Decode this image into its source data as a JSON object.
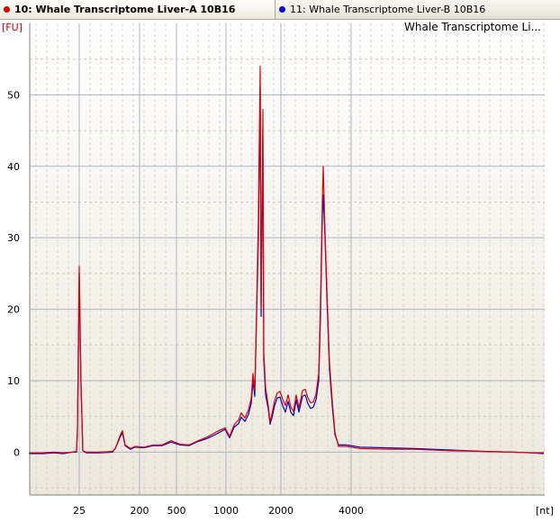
{
  "tabs": [
    {
      "label": "10: Whale Transcriptome Liver-A 10B16",
      "color": "#dd0000",
      "active": true
    },
    {
      "label": "11: Whale Transcriptome Liver-B 10B16",
      "color": "#0000dd",
      "active": false
    }
  ],
  "chart_data": {
    "type": "line",
    "title": "Whale Transcriptome Li...",
    "xlabel": "[nt]",
    "ylabel": "[FU]",
    "ylim": [
      -6,
      60
    ],
    "y_ticks": [
      0,
      10,
      20,
      30,
      40,
      50
    ],
    "x_ticks": [
      {
        "label": "25",
        "value": 25
      },
      {
        "label": "200",
        "value": 200
      },
      {
        "label": "500",
        "value": 500
      },
      {
        "label": "1000",
        "value": 1000
      },
      {
        "label": "2000",
        "value": 2000
      },
      {
        "label": "4000",
        "value": 4000
      }
    ],
    "grid": true,
    "x_scale": "nonlinear (electropherogram size ladder)",
    "series": [
      {
        "name": "10: Whale Transcriptome Liver-A 10B16",
        "color": "#e00000",
        "points": [
          [
            32,
            -0.1
          ],
          [
            48,
            -0.1
          ],
          [
            60,
            0
          ],
          [
            70,
            -0.1
          ],
          [
            80,
            0
          ],
          [
            85,
            0.1
          ],
          [
            86,
            3
          ],
          [
            88,
            26
          ],
          [
            90,
            10
          ],
          [
            92,
            0.2
          ],
          [
            96,
            0
          ],
          [
            110,
            0
          ],
          [
            125,
            0.1
          ],
          [
            128,
            0.5
          ],
          [
            133,
            2.2
          ],
          [
            136,
            3
          ],
          [
            139,
            1
          ],
          [
            145,
            0.5
          ],
          [
            150,
            0.8
          ],
          [
            160,
            0.7
          ],
          [
            170,
            1
          ],
          [
            180,
            1
          ],
          [
            190,
            1.6
          ],
          [
            200,
            1.1
          ],
          [
            210,
            1
          ],
          [
            220,
            1.6
          ],
          [
            230,
            2.1
          ],
          [
            240,
            2.8
          ],
          [
            250,
            3.4
          ],
          [
            255,
            2.2
          ],
          [
            260,
            3.8
          ],
          [
            265,
            4.5
          ],
          [
            268,
            5.5
          ],
          [
            272,
            4.8
          ],
          [
            276,
            5.9
          ],
          [
            279,
            7.5
          ],
          [
            281,
            11
          ],
          [
            283,
            8.5
          ],
          [
            285,
            20
          ],
          [
            287,
            33
          ],
          [
            289,
            54
          ],
          [
            290,
            20
          ],
          [
            292,
            48
          ],
          [
            293,
            14
          ],
          [
            295,
            9
          ],
          [
            298,
            6.5
          ],
          [
            300,
            4.2
          ],
          [
            302,
            5.3
          ],
          [
            305,
            7.2
          ],
          [
            308,
            8.3
          ],
          [
            311,
            8.5
          ],
          [
            314,
            7.4
          ],
          [
            317,
            6.5
          ],
          [
            320,
            8
          ],
          [
            323,
            6.3
          ],
          [
            326,
            5.7
          ],
          [
            329,
            8
          ],
          [
            332,
            6.2
          ],
          [
            336,
            8.6
          ],
          [
            339,
            8.8
          ],
          [
            342,
            7.6
          ],
          [
            345,
            6.9
          ],
          [
            348,
            7
          ],
          [
            351,
            8.1
          ],
          [
            354,
            11
          ],
          [
            356,
            21
          ],
          [
            358,
            35
          ],
          [
            359,
            40
          ],
          [
            361,
            31
          ],
          [
            363,
            23
          ],
          [
            366,
            12.5
          ],
          [
            369,
            7.2
          ],
          [
            372,
            2.8
          ],
          [
            376,
            0.8
          ],
          [
            385,
            0.8
          ],
          [
            400,
            0.5
          ],
          [
            430,
            0.4
          ],
          [
            460,
            0.4
          ],
          [
            500,
            0.2
          ],
          [
            540,
            0.1
          ],
          [
            570,
            0
          ],
          [
            590,
            -0.1
          ],
          [
            604,
            -0.1
          ]
        ]
      },
      {
        "name": "11: Whale Transcriptome Liver-B 10B16",
        "color": "#0000cc",
        "points": [
          [
            32,
            -0.2
          ],
          [
            48,
            -0.2
          ],
          [
            60,
            -0.1
          ],
          [
            70,
            -0.2
          ],
          [
            80,
            0
          ],
          [
            85,
            0
          ],
          [
            86,
            3
          ],
          [
            88,
            25
          ],
          [
            90,
            9
          ],
          [
            92,
            0.2
          ],
          [
            96,
            -0.1
          ],
          [
            110,
            -0.1
          ],
          [
            125,
            0
          ],
          [
            128,
            0.5
          ],
          [
            133,
            2
          ],
          [
            136,
            2.7
          ],
          [
            139,
            0.9
          ],
          [
            145,
            0.4
          ],
          [
            150,
            0.7
          ],
          [
            160,
            0.6
          ],
          [
            170,
            0.9
          ],
          [
            180,
            0.9
          ],
          [
            190,
            1.4
          ],
          [
            200,
            1
          ],
          [
            210,
            0.9
          ],
          [
            220,
            1.5
          ],
          [
            230,
            1.9
          ],
          [
            240,
            2.5
          ],
          [
            250,
            3.2
          ],
          [
            255,
            2
          ],
          [
            260,
            3.5
          ],
          [
            265,
            4
          ],
          [
            268,
            4.9
          ],
          [
            272,
            4.3
          ],
          [
            276,
            5.3
          ],
          [
            279,
            6.8
          ],
          [
            281,
            10
          ],
          [
            283,
            7.8
          ],
          [
            285,
            19
          ],
          [
            287,
            30
          ],
          [
            289,
            51
          ],
          [
            290,
            19
          ],
          [
            292,
            44
          ],
          [
            293,
            13
          ],
          [
            295,
            8
          ],
          [
            298,
            6
          ],
          [
            300,
            3.9
          ],
          [
            302,
            4.8
          ],
          [
            305,
            6.5
          ],
          [
            308,
            7.6
          ],
          [
            311,
            7.7
          ],
          [
            314,
            6.5
          ],
          [
            317,
            5.6
          ],
          [
            320,
            7.1
          ],
          [
            323,
            5.6
          ],
          [
            326,
            5.1
          ],
          [
            329,
            7.3
          ],
          [
            332,
            5.6
          ],
          [
            336,
            7.8
          ],
          [
            339,
            8
          ],
          [
            342,
            6.8
          ],
          [
            345,
            6.1
          ],
          [
            348,
            6.3
          ],
          [
            351,
            7.3
          ],
          [
            354,
            10
          ],
          [
            356,
            19
          ],
          [
            358,
            33
          ],
          [
            359,
            36
          ],
          [
            361,
            30
          ],
          [
            363,
            22
          ],
          [
            366,
            11.5
          ],
          [
            369,
            6.5
          ],
          [
            372,
            2.5
          ],
          [
            376,
            1
          ],
          [
            385,
            1
          ],
          [
            400,
            0.7
          ],
          [
            430,
            0.6
          ],
          [
            460,
            0.5
          ],
          [
            500,
            0.3
          ],
          [
            540,
            0.1
          ],
          [
            570,
            0
          ],
          [
            590,
            -0.1
          ],
          [
            604,
            -0.2
          ]
        ]
      }
    ]
  }
}
